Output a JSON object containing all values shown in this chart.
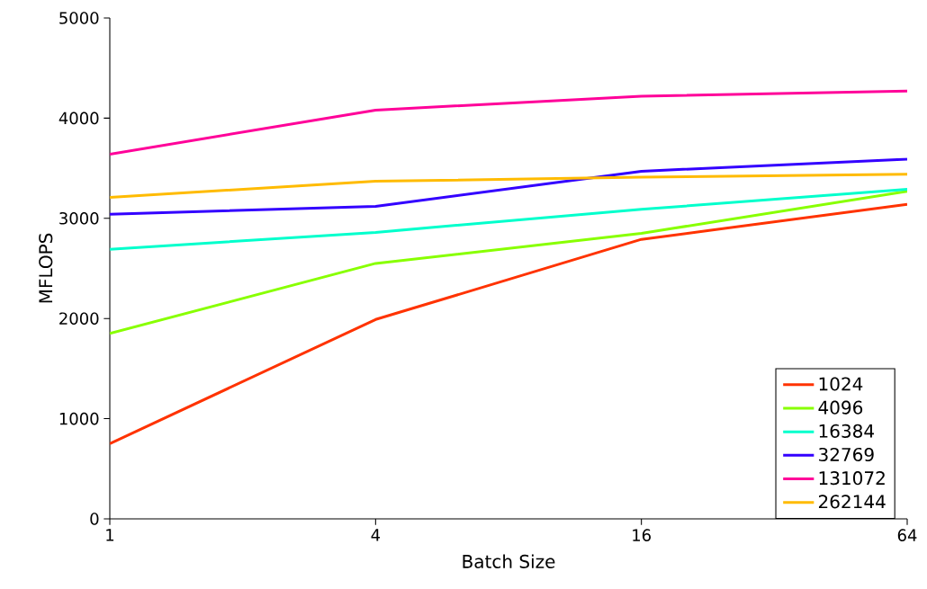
{
  "chart_data": {
    "type": "line",
    "xlabel": "Batch Size",
    "ylabel": "MFLOPS",
    "x": [
      1,
      4,
      16,
      64
    ],
    "log": "x",
    "xlim": [
      1,
      64
    ],
    "xticks": [
      1,
      4,
      16,
      64
    ],
    "ylim": [
      0,
      5000
    ],
    "yticks": [
      0,
      1000,
      2000,
      3000,
      4000,
      5000
    ],
    "grid": false,
    "legend": "bottom right",
    "marker": "none",
    "line_style": "solid",
    "series": [
      {
        "name": "1024",
        "color": "#ff3300",
        "values": [
          750,
          1990,
          2790,
          3140
        ]
      },
      {
        "name": "4096",
        "color": "#88ff00",
        "values": [
          1850,
          2550,
          2850,
          3270
        ]
      },
      {
        "name": "16384",
        "color": "#00ffcc",
        "values": [
          2690,
          2860,
          3090,
          3290
        ]
      },
      {
        "name": "32769",
        "color": "#3300ff",
        "values": [
          3040,
          3120,
          3470,
          3590
        ]
      },
      {
        "name": "131072",
        "color": "#ff0099",
        "values": [
          3640,
          4080,
          4220,
          4270
        ]
      },
      {
        "name": "262144",
        "color": "#ffbb00",
        "values": [
          3210,
          3370,
          3410,
          3440
        ]
      }
    ]
  }
}
